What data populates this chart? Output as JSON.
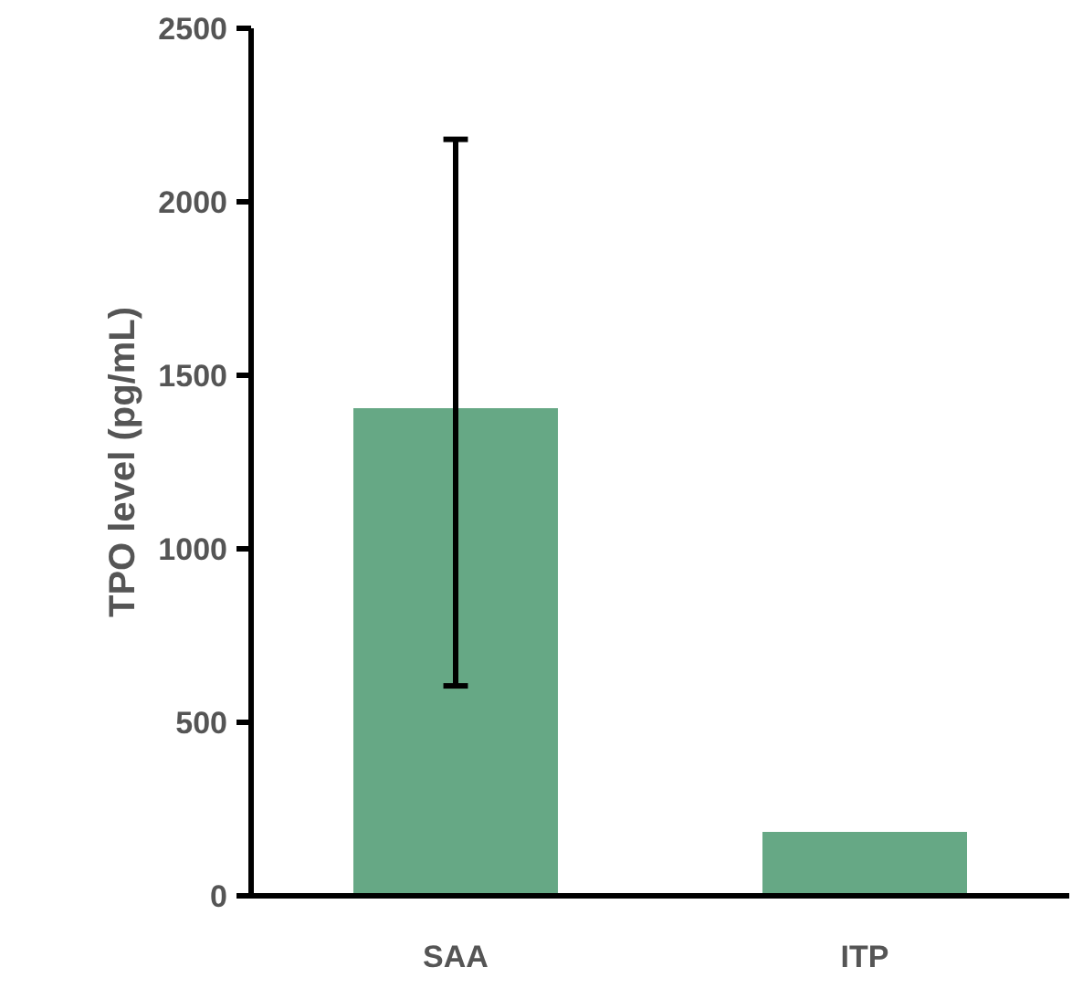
{
  "chart_data": {
    "type": "bar",
    "ylabel": "TPO level (pg/mL)",
    "categories": [
      "SAA",
      "ITP"
    ],
    "values": [
      1405,
      184
    ],
    "color": "#66a885",
    "errors": [
      [
        605,
        2180
      ],
      null
    ],
    "ylim": [
      0,
      2500
    ],
    "yticks": [
      0,
      500,
      1000,
      1500,
      2000,
      2500
    ],
    "grid": false
  }
}
